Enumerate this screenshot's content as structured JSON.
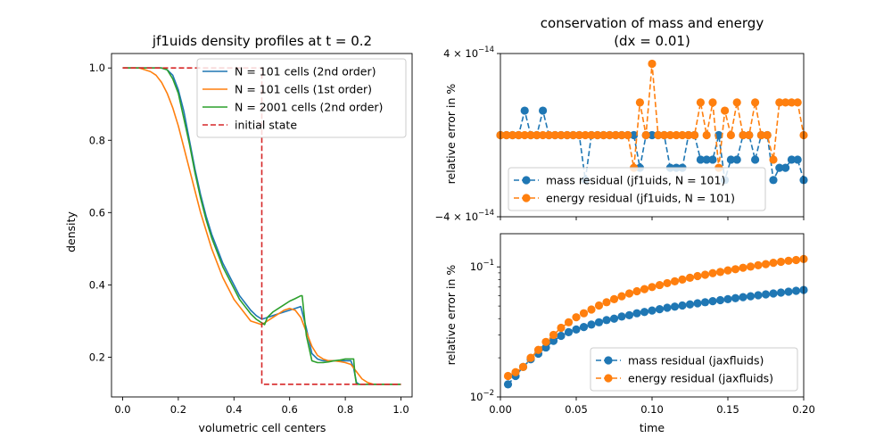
{
  "chart_data": [
    {
      "type": "line",
      "title": "jf1uids density profiles at t = 0.2",
      "xlabel": "volumetric cell centers",
      "ylabel": "density",
      "xlim": [
        -0.04,
        1.04
      ],
      "ylim": [
        0.09,
        1.04
      ],
      "xticks": [
        "0.0",
        "0.2",
        "0.4",
        "0.6",
        "0.8",
        "1.0"
      ],
      "yticks": [
        "0.2",
        "0.4",
        "0.6",
        "0.8",
        "1.0"
      ],
      "legend_position": "top-right",
      "series": [
        {
          "name": "N = 101 cells (2nd order)",
          "color": "#1f77b4",
          "style": "solid",
          "x": [
            0,
            0.1,
            0.12,
            0.14,
            0.16,
            0.18,
            0.2,
            0.22,
            0.24,
            0.26,
            0.28,
            0.3,
            0.32,
            0.34,
            0.36,
            0.38,
            0.4,
            0.42,
            0.44,
            0.46,
            0.48,
            0.5,
            0.52,
            0.54,
            0.56,
            0.58,
            0.6,
            0.62,
            0.64,
            0.66,
            0.68,
            0.7,
            0.72,
            0.74,
            0.76,
            0.78,
            0.8,
            0.82,
            0.83,
            0.84,
            0.85,
            0.86,
            0.88,
            1.0
          ],
          "y": [
            1.0,
            1.0,
            1.0,
            1.0,
            0.995,
            0.98,
            0.94,
            0.88,
            0.8,
            0.72,
            0.65,
            0.59,
            0.54,
            0.5,
            0.46,
            0.43,
            0.4,
            0.37,
            0.35,
            0.33,
            0.315,
            0.305,
            0.31,
            0.315,
            0.32,
            0.325,
            0.33,
            0.335,
            0.34,
            0.28,
            0.21,
            0.195,
            0.19,
            0.19,
            0.19,
            0.19,
            0.19,
            0.19,
            0.17,
            0.13,
            0.125,
            0.125,
            0.125,
            0.125
          ]
        },
        {
          "name": "N = 101 cells (1st order)",
          "color": "#ff7f0e",
          "style": "solid",
          "x": [
            0,
            0.06,
            0.08,
            0.1,
            0.12,
            0.14,
            0.16,
            0.18,
            0.2,
            0.22,
            0.24,
            0.26,
            0.28,
            0.3,
            0.32,
            0.34,
            0.36,
            0.38,
            0.4,
            0.42,
            0.44,
            0.46,
            0.48,
            0.5,
            0.52,
            0.54,
            0.56,
            0.58,
            0.6,
            0.62,
            0.64,
            0.66,
            0.68,
            0.7,
            0.72,
            0.74,
            0.76,
            0.78,
            0.8,
            0.82,
            0.84,
            0.86,
            0.88,
            0.9,
            1.0
          ],
          "y": [
            1.0,
            1.0,
            0.995,
            0.99,
            0.98,
            0.96,
            0.93,
            0.89,
            0.84,
            0.78,
            0.72,
            0.66,
            0.6,
            0.55,
            0.5,
            0.46,
            0.42,
            0.39,
            0.36,
            0.34,
            0.32,
            0.3,
            0.295,
            0.29,
            0.3,
            0.31,
            0.32,
            0.33,
            0.335,
            0.33,
            0.31,
            0.27,
            0.23,
            0.205,
            0.195,
            0.19,
            0.19,
            0.188,
            0.185,
            0.18,
            0.16,
            0.14,
            0.13,
            0.125,
            0.125
          ]
        },
        {
          "name": "N = 2001 cells (2nd order)",
          "color": "#2ca02c",
          "style": "solid",
          "x": [
            0,
            0.14,
            0.16,
            0.18,
            0.2,
            0.22,
            0.24,
            0.26,
            0.28,
            0.3,
            0.32,
            0.34,
            0.36,
            0.38,
            0.4,
            0.42,
            0.44,
            0.46,
            0.48,
            0.5,
            0.51,
            0.52,
            0.54,
            0.56,
            0.58,
            0.6,
            0.62,
            0.64,
            0.645,
            0.66,
            0.68,
            0.7,
            0.72,
            0.74,
            0.76,
            0.78,
            0.8,
            0.82,
            0.83,
            0.835,
            0.84,
            1.0
          ],
          "y": [
            1.0,
            1.0,
            0.995,
            0.97,
            0.93,
            0.86,
            0.79,
            0.71,
            0.64,
            0.58,
            0.53,
            0.49,
            0.45,
            0.42,
            0.39,
            0.36,
            0.34,
            0.32,
            0.305,
            0.295,
            0.29,
            0.31,
            0.325,
            0.335,
            0.345,
            0.355,
            0.362,
            0.37,
            0.37,
            0.26,
            0.19,
            0.185,
            0.185,
            0.187,
            0.19,
            0.192,
            0.195,
            0.195,
            0.195,
            0.15,
            0.125,
            0.125
          ]
        },
        {
          "name": "initial state",
          "color": "#d62728",
          "style": "dashed",
          "x": [
            0,
            0.5,
            0.5,
            1.0
          ],
          "y": [
            1.0,
            1.0,
            0.125,
            0.125
          ]
        }
      ]
    },
    {
      "type": "line",
      "title": "conservation of mass and energy",
      "subtitle": "(dx = 0.01)",
      "xlabel": "",
      "ylabel": "relative error in %",
      "xlim": [
        0,
        0.2
      ],
      "ylim": [
        -4e-14,
        4e-14
      ],
      "yticks": [
        {
          "value": 4e-14,
          "base": "4 × 10",
          "exp": "−14"
        },
        {
          "value": -4e-14,
          "base": "−4 × 10",
          "exp": "−14"
        }
      ],
      "legend_position": "lower-center",
      "series": [
        {
          "name": "mass residual (jf1uids, N = 101)",
          "color": "#1f77b4",
          "style": "dashed",
          "marker": "circle",
          "x": [
            0.0,
            0.004,
            0.008,
            0.012,
            0.016,
            0.02,
            0.024,
            0.028,
            0.032,
            0.036,
            0.04,
            0.044,
            0.048,
            0.052,
            0.056,
            0.06,
            0.064,
            0.068,
            0.072,
            0.076,
            0.08,
            0.084,
            0.088,
            0.092,
            0.096,
            0.1,
            0.104,
            0.108,
            0.112,
            0.116,
            0.12,
            0.124,
            0.128,
            0.132,
            0.136,
            0.14,
            0.144,
            0.148,
            0.152,
            0.156,
            0.16,
            0.164,
            0.168,
            0.172,
            0.176,
            0.18,
            0.184,
            0.188,
            0.192,
            0.196,
            0.2
          ],
          "y": [
            0,
            0,
            0,
            0,
            1.2e-14,
            0,
            0,
            1.2e-14,
            0,
            0,
            0,
            0,
            0,
            0,
            -2.2e-14,
            0,
            0,
            0,
            0,
            0,
            0,
            0,
            0,
            -1.6e-14,
            0,
            0,
            0,
            0,
            -1.6e-14,
            -1.6e-14,
            -1.6e-14,
            0,
            0,
            -1.2e-14,
            -1.2e-14,
            -1.2e-14,
            0,
            -2.2e-14,
            -1.2e-14,
            -1.2e-14,
            0,
            0,
            -1.2e-14,
            0,
            0,
            -2.2e-14,
            -1.6e-14,
            -1.6e-14,
            -1.2e-14,
            -1.2e-14,
            -2.2e-14
          ]
        },
        {
          "name": "energy residual (jf1uids, N = 101)",
          "color": "#ff7f0e",
          "style": "dashed",
          "marker": "circle",
          "x": [
            0.0,
            0.004,
            0.008,
            0.012,
            0.016,
            0.02,
            0.024,
            0.028,
            0.032,
            0.036,
            0.04,
            0.044,
            0.048,
            0.052,
            0.056,
            0.06,
            0.064,
            0.068,
            0.072,
            0.076,
            0.08,
            0.084,
            0.088,
            0.092,
            0.096,
            0.1,
            0.104,
            0.108,
            0.112,
            0.116,
            0.12,
            0.124,
            0.128,
            0.132,
            0.136,
            0.14,
            0.144,
            0.148,
            0.152,
            0.156,
            0.16,
            0.164,
            0.168,
            0.172,
            0.176,
            0.18,
            0.184,
            0.188,
            0.192,
            0.196,
            0.2
          ],
          "y": [
            0,
            0,
            0,
            0,
            0,
            0,
            0,
            0,
            0,
            0,
            0,
            0,
            0,
            0,
            0,
            0,
            0,
            0,
            0,
            0,
            0,
            0,
            -1.6e-14,
            1.6e-14,
            0,
            3.5e-14,
            0,
            0,
            0,
            0,
            0,
            0,
            0,
            1.6e-14,
            0,
            1.6e-14,
            -1.6e-14,
            1.2e-14,
            0,
            1.6e-14,
            0,
            0,
            1.6e-14,
            0,
            0,
            -1.2e-14,
            1.6e-14,
            1.6e-14,
            1.6e-14,
            1.6e-14,
            0
          ]
        }
      ]
    },
    {
      "type": "line",
      "title": "",
      "xlabel": "time",
      "ylabel": "relative error in %",
      "xlim": [
        0,
        0.2
      ],
      "ylim": [
        0.01,
        0.18
      ],
      "yscale": "log",
      "xticks": [
        "0.00",
        "0.05",
        "0.10",
        "0.15",
        "0.20"
      ],
      "yticks": [
        {
          "value": 0.1,
          "base": "10",
          "exp": "−1"
        },
        {
          "value": 0.01,
          "base": "10",
          "exp": "−2"
        }
      ],
      "legend_position": "lower-right",
      "series": [
        {
          "name": "mass residual (jaxfluids)",
          "color": "#1f77b4",
          "style": "dashed",
          "marker": "circle",
          "x": [
            0.005,
            0.01,
            0.015,
            0.02,
            0.025,
            0.03,
            0.035,
            0.04,
            0.045,
            0.05,
            0.055,
            0.06,
            0.065,
            0.07,
            0.075,
            0.08,
            0.085,
            0.09,
            0.095,
            0.1,
            0.105,
            0.11,
            0.115,
            0.12,
            0.125,
            0.13,
            0.135,
            0.14,
            0.145,
            0.15,
            0.155,
            0.16,
            0.165,
            0.17,
            0.175,
            0.18,
            0.185,
            0.19,
            0.195,
            0.2
          ],
          "y": [
            0.0125,
            0.0145,
            0.017,
            0.0195,
            0.0215,
            0.024,
            0.027,
            0.0295,
            0.0315,
            0.033,
            0.0345,
            0.036,
            0.0375,
            0.039,
            0.04,
            0.0415,
            0.0425,
            0.044,
            0.045,
            0.0462,
            0.0473,
            0.0485,
            0.0495,
            0.0505,
            0.0515,
            0.0525,
            0.0535,
            0.0545,
            0.0555,
            0.0565,
            0.0575,
            0.0585,
            0.0595,
            0.0605,
            0.0615,
            0.0625,
            0.0635,
            0.0645,
            0.0655,
            0.0665
          ]
        },
        {
          "name": "energy residual (jaxfluids)",
          "color": "#ff7f0e",
          "style": "dashed",
          "marker": "circle",
          "x": [
            0.005,
            0.01,
            0.015,
            0.02,
            0.025,
            0.03,
            0.035,
            0.04,
            0.045,
            0.05,
            0.055,
            0.06,
            0.065,
            0.07,
            0.075,
            0.08,
            0.085,
            0.09,
            0.095,
            0.1,
            0.105,
            0.11,
            0.115,
            0.12,
            0.125,
            0.13,
            0.135,
            0.14,
            0.145,
            0.15,
            0.155,
            0.16,
            0.165,
            0.17,
            0.175,
            0.18,
            0.185,
            0.19,
            0.195,
            0.2
          ],
          "y": [
            0.0145,
            0.0155,
            0.017,
            0.02,
            0.023,
            0.0265,
            0.03,
            0.034,
            0.0375,
            0.041,
            0.044,
            0.047,
            0.0505,
            0.0535,
            0.0565,
            0.0595,
            0.0625,
            0.065,
            0.0675,
            0.07,
            0.0725,
            0.075,
            0.0775,
            0.08,
            0.0825,
            0.085,
            0.087,
            0.0895,
            0.0915,
            0.094,
            0.096,
            0.0985,
            0.1005,
            0.103,
            0.105,
            0.1075,
            0.1095,
            0.1115,
            0.113,
            0.115
          ]
        }
      ]
    }
  ]
}
